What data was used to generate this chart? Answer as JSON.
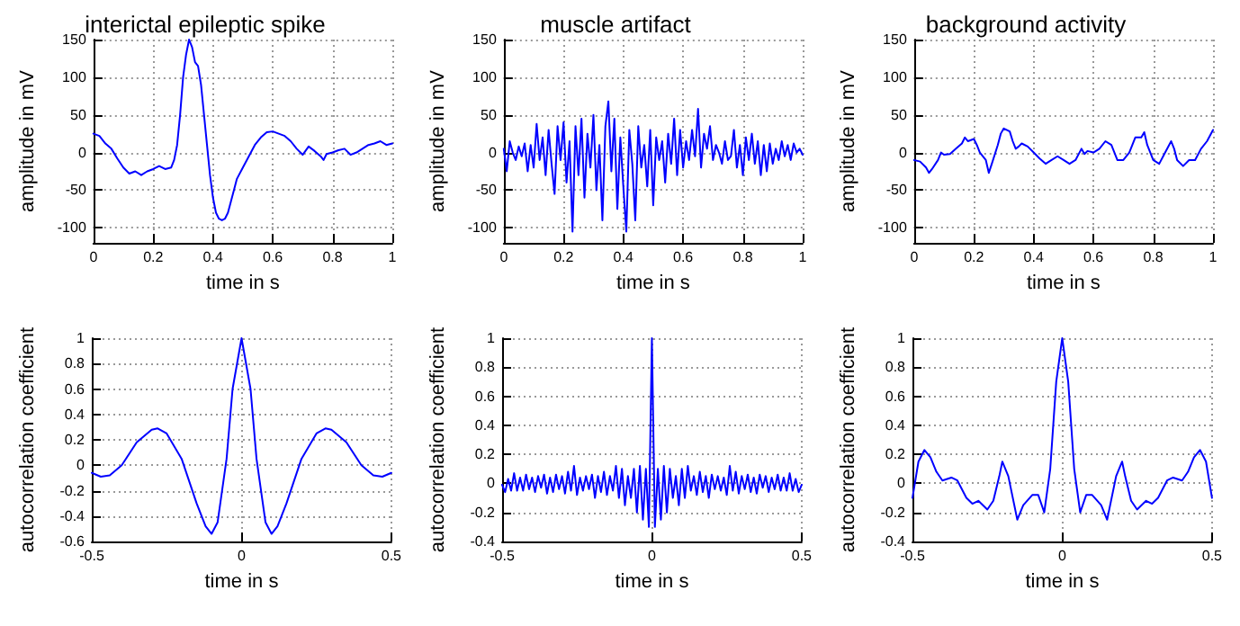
{
  "chart_data": [
    {
      "type": "line",
      "title": "interictal epileptic spike",
      "xlabel": "time in s",
      "ylabel": "amplitude in mV",
      "color": "#0000ff",
      "grid": true,
      "xlim": [
        0,
        1
      ],
      "ylim": [
        -120,
        150
      ],
      "xticks": [
        0,
        0.2,
        0.4,
        0.6,
        0.8,
        1
      ],
      "yticks": [
        -100,
        -50,
        0,
        50,
        100,
        150
      ],
      "x": [
        0,
        0.02,
        0.04,
        0.06,
        0.08,
        0.1,
        0.12,
        0.14,
        0.16,
        0.18,
        0.2,
        0.22,
        0.24,
        0.26,
        0.27,
        0.28,
        0.29,
        0.3,
        0.31,
        0.32,
        0.33,
        0.34,
        0.35,
        0.36,
        0.37,
        0.38,
        0.39,
        0.4,
        0.41,
        0.42,
        0.43,
        0.44,
        0.45,
        0.46,
        0.47,
        0.48,
        0.5,
        0.52,
        0.54,
        0.56,
        0.58,
        0.6,
        0.62,
        0.64,
        0.66,
        0.68,
        0.7,
        0.72,
        0.74,
        0.76,
        0.77,
        0.78,
        0.8,
        0.82,
        0.84,
        0.86,
        0.88,
        0.9,
        0.92,
        0.94,
        0.96,
        0.98,
        1
      ],
      "values": [
        25,
        22,
        12,
        5,
        -8,
        -20,
        -28,
        -25,
        -30,
        -25,
        -22,
        -18,
        -22,
        -20,
        -10,
        10,
        50,
        100,
        130,
        150,
        140,
        120,
        115,
        90,
        50,
        10,
        -30,
        -60,
        -80,
        -88,
        -90,
        -88,
        -80,
        -65,
        -50,
        -35,
        -20,
        -5,
        10,
        20,
        27,
        28,
        25,
        22,
        15,
        5,
        -3,
        8,
        2,
        -5,
        -10,
        -2,
        0,
        3,
        5,
        -3,
        0,
        5,
        10,
        12,
        15,
        10,
        12
      ]
    },
    {
      "type": "line",
      "title": "muscle artifact",
      "xlabel": "time in s",
      "ylabel": "amplitude in mV",
      "color": "#0000ff",
      "grid": true,
      "xlim": [
        0,
        1
      ],
      "ylim": [
        -120,
        150
      ],
      "xticks": [
        0,
        0.2,
        0.4,
        0.6,
        0.8,
        1
      ],
      "yticks": [
        -100,
        -50,
        0,
        50,
        100,
        150
      ],
      "x": [
        0,
        0.01,
        0.02,
        0.03,
        0.04,
        0.05,
        0.06,
        0.07,
        0.08,
        0.09,
        0.1,
        0.11,
        0.12,
        0.13,
        0.14,
        0.15,
        0.16,
        0.17,
        0.18,
        0.19,
        0.2,
        0.21,
        0.22,
        0.23,
        0.24,
        0.25,
        0.26,
        0.27,
        0.28,
        0.29,
        0.3,
        0.31,
        0.32,
        0.33,
        0.34,
        0.35,
        0.36,
        0.37,
        0.38,
        0.39,
        0.4,
        0.41,
        0.42,
        0.43,
        0.44,
        0.45,
        0.46,
        0.47,
        0.48,
        0.49,
        0.5,
        0.51,
        0.52,
        0.53,
        0.54,
        0.55,
        0.56,
        0.57,
        0.58,
        0.59,
        0.6,
        0.61,
        0.62,
        0.63,
        0.64,
        0.65,
        0.66,
        0.67,
        0.68,
        0.69,
        0.7,
        0.71,
        0.72,
        0.73,
        0.74,
        0.75,
        0.76,
        0.77,
        0.78,
        0.79,
        0.8,
        0.81,
        0.82,
        0.83,
        0.84,
        0.85,
        0.86,
        0.87,
        0.88,
        0.89,
        0.9,
        0.91,
        0.92,
        0.93,
        0.94,
        0.95,
        0.96,
        0.97,
        0.98,
        0.99,
        1
      ],
      "values": [
        5,
        -25,
        15,
        0,
        -10,
        8,
        -5,
        12,
        -25,
        10,
        -20,
        38,
        -10,
        20,
        -30,
        30,
        -15,
        -55,
        35,
        -10,
        40,
        -40,
        15,
        -105,
        35,
        -30,
        45,
        -60,
        25,
        -20,
        50,
        -50,
        10,
        -90,
        35,
        68,
        -25,
        45,
        -75,
        20,
        -45,
        -105,
        30,
        -15,
        -90,
        35,
        -20,
        10,
        -45,
        30,
        -70,
        20,
        -10,
        15,
        -40,
        25,
        -15,
        45,
        -30,
        30,
        -20,
        15,
        -10,
        30,
        -5,
        58,
        -20,
        25,
        5,
        35,
        -10,
        10,
        0,
        -15,
        15,
        -10,
        -5,
        30,
        -20,
        10,
        -30,
        20,
        -10,
        25,
        -15,
        15,
        -30,
        10,
        -25,
        12,
        -15,
        5,
        -10,
        15,
        -5,
        10,
        -10,
        12,
        0,
        5,
        -3
      ]
    },
    {
      "type": "line",
      "title": "background activity",
      "xlabel": "time in s",
      "ylabel": "amplitude in mV",
      "color": "#0000ff",
      "grid": true,
      "xlim": [
        0,
        1
      ],
      "ylim": [
        -120,
        150
      ],
      "xticks": [
        0,
        0.2,
        0.4,
        0.6,
        0.8,
        1
      ],
      "yticks": [
        -100,
        -50,
        0,
        50,
        100,
        150
      ],
      "x": [
        0,
        0.02,
        0.04,
        0.05,
        0.06,
        0.08,
        0.09,
        0.1,
        0.12,
        0.14,
        0.16,
        0.17,
        0.18,
        0.2,
        0.21,
        0.22,
        0.24,
        0.25,
        0.26,
        0.28,
        0.29,
        0.3,
        0.32,
        0.33,
        0.34,
        0.35,
        0.36,
        0.38,
        0.4,
        0.42,
        0.44,
        0.46,
        0.48,
        0.5,
        0.52,
        0.54,
        0.56,
        0.57,
        0.58,
        0.6,
        0.62,
        0.64,
        0.66,
        0.68,
        0.7,
        0.72,
        0.74,
        0.76,
        0.77,
        0.78,
        0.8,
        0.82,
        0.84,
        0.86,
        0.87,
        0.88,
        0.9,
        0.92,
        0.94,
        0.96,
        0.98,
        1
      ],
      "values": [
        -10,
        -12,
        -20,
        -27,
        -22,
        -10,
        0,
        -3,
        -2,
        5,
        12,
        20,
        15,
        18,
        10,
        0,
        -10,
        -27,
        -15,
        10,
        25,
        32,
        28,
        15,
        5,
        8,
        12,
        8,
        0,
        -8,
        -15,
        -10,
        -5,
        -10,
        -15,
        -10,
        5,
        -2,
        2,
        0,
        5,
        15,
        10,
        -10,
        -10,
        0,
        20,
        20,
        27,
        10,
        -10,
        -15,
        0,
        15,
        5,
        -10,
        -18,
        -10,
        -10,
        5,
        15,
        30
      ]
    },
    {
      "type": "line",
      "xlabel": "time in s",
      "ylabel": "autocorrelation coefficient",
      "color": "#0000ff",
      "grid": true,
      "xlim": [
        -0.5,
        0.5
      ],
      "ylim": [
        -0.6,
        1
      ],
      "xticks": [
        -0.5,
        0,
        0.5
      ],
      "yticks": [
        -0.6,
        -0.4,
        -0.2,
        0,
        0.2,
        0.4,
        0.6,
        0.8,
        1
      ],
      "x": [
        -0.5,
        -0.47,
        -0.44,
        -0.4,
        -0.35,
        -0.3,
        -0.28,
        -0.25,
        -0.2,
        -0.15,
        -0.12,
        -0.1,
        -0.08,
        -0.05,
        -0.03,
        0,
        0.03,
        0.05,
        0.08,
        0.1,
        0.12,
        0.15,
        0.2,
        0.25,
        0.28,
        0.3,
        0.35,
        0.4,
        0.44,
        0.47,
        0.5
      ],
      "values": [
        -0.06,
        -0.09,
        -0.08,
        0,
        0.18,
        0.28,
        0.29,
        0.25,
        0.05,
        -0.3,
        -0.48,
        -0.54,
        -0.45,
        0.05,
        0.6,
        1,
        0.6,
        0.05,
        -0.45,
        -0.54,
        -0.48,
        -0.3,
        0.05,
        0.25,
        0.29,
        0.28,
        0.18,
        0,
        -0.08,
        -0.09,
        -0.06
      ]
    },
    {
      "type": "line",
      "xlabel": "time in s",
      "ylabel": "autocorrelation coefficient",
      "color": "#0000ff",
      "grid": true,
      "xlim": [
        -0.5,
        0.5
      ],
      "ylim": [
        -0.4,
        1
      ],
      "xticks": [
        -0.5,
        0,
        0.5
      ],
      "yticks": [
        -0.4,
        -0.2,
        0,
        0.2,
        0.4,
        0.6,
        0.8,
        1
      ],
      "x": [
        -0.5,
        -0.49,
        -0.48,
        -0.47,
        -0.46,
        -0.45,
        -0.44,
        -0.43,
        -0.42,
        -0.41,
        -0.4,
        -0.39,
        -0.38,
        -0.37,
        -0.36,
        -0.35,
        -0.34,
        -0.33,
        -0.32,
        -0.31,
        -0.3,
        -0.29,
        -0.28,
        -0.27,
        -0.26,
        -0.25,
        -0.24,
        -0.23,
        -0.22,
        -0.21,
        -0.2,
        -0.19,
        -0.18,
        -0.17,
        -0.16,
        -0.15,
        -0.14,
        -0.13,
        -0.12,
        -0.11,
        -0.1,
        -0.09,
        -0.08,
        -0.07,
        -0.06,
        -0.05,
        -0.04,
        -0.03,
        -0.02,
        -0.01,
        0,
        0.01,
        0.02,
        0.03,
        0.04,
        0.05,
        0.06,
        0.07,
        0.08,
        0.09,
        0.1,
        0.11,
        0.12,
        0.13,
        0.14,
        0.15,
        0.16,
        0.17,
        0.18,
        0.19,
        0.2,
        0.21,
        0.22,
        0.23,
        0.24,
        0.25,
        0.26,
        0.27,
        0.28,
        0.29,
        0.3,
        0.31,
        0.32,
        0.33,
        0.34,
        0.35,
        0.36,
        0.37,
        0.38,
        0.39,
        0.4,
        0.41,
        0.42,
        0.43,
        0.44,
        0.45,
        0.46,
        0.47,
        0.48,
        0.49,
        0.5
      ],
      "values": [
        -0.01,
        -0.06,
        0.03,
        -0.05,
        0.07,
        -0.05,
        0.04,
        -0.05,
        0.06,
        -0.04,
        0.04,
        -0.06,
        0.05,
        -0.03,
        0.06,
        -0.07,
        0.04,
        -0.06,
        0.06,
        -0.04,
        0.05,
        -0.07,
        0.08,
        -0.05,
        0.12,
        -0.08,
        0.04,
        -0.05,
        0.05,
        -0.04,
        0.06,
        -0.1,
        0.05,
        -0.06,
        0.08,
        -0.08,
        0.05,
        -0.05,
        0.12,
        -0.1,
        0.1,
        -0.15,
        0.05,
        -0.1,
        0.1,
        -0.2,
        0.12,
        -0.25,
        0.1,
        -0.3,
        1,
        -0.3,
        0.1,
        -0.25,
        0.12,
        -0.2,
        0.1,
        -0.1,
        0.05,
        -0.15,
        0.1,
        -0.1,
        0.12,
        -0.05,
        0.05,
        -0.08,
        0.08,
        -0.06,
        0.05,
        -0.1,
        0.06,
        -0.04,
        0.05,
        -0.05,
        0.04,
        -0.08,
        0.12,
        -0.05,
        0.08,
        -0.07,
        0.05,
        -0.04,
        0.06,
        -0.06,
        0.04,
        -0.07,
        0.06,
        -0.03,
        0.05,
        -0.06,
        0.04,
        -0.04,
        0.06,
        -0.05,
        0.04,
        -0.05,
        0.07,
        -0.05,
        0.03,
        -0.06,
        -0.01
      ]
    },
    {
      "type": "line",
      "xlabel": "time in s",
      "ylabel": "autocorrelation coefficient",
      "color": "#0000ff",
      "grid": true,
      "xlim": [
        -0.5,
        0.5
      ],
      "ylim": [
        -0.4,
        1
      ],
      "xticks": [
        -0.5,
        0,
        0.5
      ],
      "yticks": [
        -0.4,
        -0.2,
        0,
        0.2,
        0.4,
        0.6,
        0.8,
        1
      ],
      "x": [
        -0.5,
        -0.48,
        -0.46,
        -0.44,
        -0.42,
        -0.4,
        -0.37,
        -0.35,
        -0.32,
        -0.3,
        -0.28,
        -0.25,
        -0.23,
        -0.21,
        -0.2,
        -0.18,
        -0.15,
        -0.13,
        -0.1,
        -0.08,
        -0.06,
        -0.04,
        -0.02,
        0,
        0.02,
        0.04,
        0.06,
        0.08,
        0.1,
        0.13,
        0.15,
        0.18,
        0.2,
        0.21,
        0.23,
        0.25,
        0.28,
        0.3,
        0.32,
        0.35,
        0.37,
        0.4,
        0.42,
        0.44,
        0.46,
        0.48,
        0.5
      ],
      "values": [
        -0.1,
        0.15,
        0.23,
        0.18,
        0.08,
        0.02,
        0.04,
        0.02,
        -0.1,
        -0.14,
        -0.12,
        -0.18,
        -0.12,
        0.05,
        0.15,
        0.05,
        -0.25,
        -0.15,
        -0.08,
        -0.08,
        -0.2,
        0.1,
        0.7,
        1,
        0.7,
        0.1,
        -0.2,
        -0.08,
        -0.08,
        -0.15,
        -0.25,
        0.05,
        0.15,
        0.05,
        -0.12,
        -0.18,
        -0.12,
        -0.14,
        -0.1,
        0.02,
        0.04,
        0.02,
        0.08,
        0.18,
        0.23,
        0.15,
        -0.1
      ]
    }
  ]
}
